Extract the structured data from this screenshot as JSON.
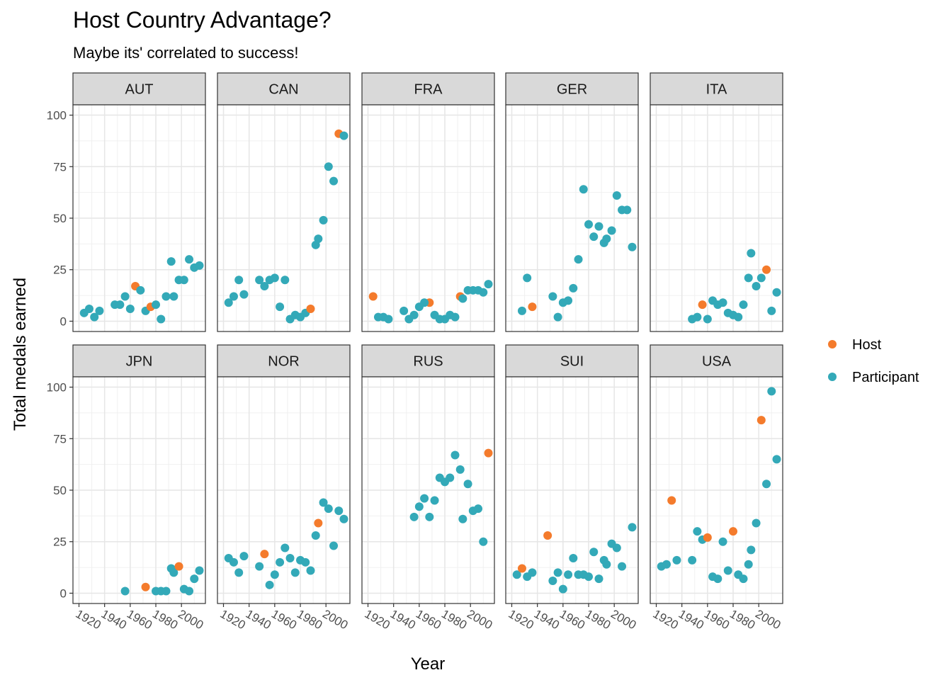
{
  "chart_data": {
    "type": "scatter",
    "title": "Host Country Advantage?",
    "subtitle": "Maybe its' correlated to success!",
    "xlabel": "Year",
    "ylabel": "Total medals earned",
    "xlim": [
      1920,
      2014
    ],
    "ylim": [
      0,
      100
    ],
    "x_ticks": [
      1920,
      1940,
      1960,
      1980,
      2000
    ],
    "y_ticks": [
      0,
      25,
      50,
      75,
      100
    ],
    "grid": true,
    "facet_layout": "2 rows x 5 columns",
    "legend_position": "right",
    "legend": [
      {
        "name": "Host",
        "color": "#F47B2C"
      },
      {
        "name": "Participant",
        "color": "#33A9B8"
      }
    ],
    "colors": {
      "Host": "#F47B2C",
      "Participant": "#33A9B8"
    },
    "panels": [
      {
        "name": "AUT",
        "points": [
          [
            1924,
            4,
            "Participant"
          ],
          [
            1928,
            6,
            "Participant"
          ],
          [
            1932,
            2,
            "Participant"
          ],
          [
            1936,
            5,
            "Participant"
          ],
          [
            1948,
            8,
            "Participant"
          ],
          [
            1952,
            8,
            "Participant"
          ],
          [
            1956,
            12,
            "Participant"
          ],
          [
            1960,
            6,
            "Participant"
          ],
          [
            1964,
            17,
            "Host"
          ],
          [
            1968,
            15,
            "Participant"
          ],
          [
            1972,
            5,
            "Participant"
          ],
          [
            1976,
            7,
            "Host"
          ],
          [
            1980,
            8,
            "Participant"
          ],
          [
            1984,
            1,
            "Participant"
          ],
          [
            1988,
            12,
            "Participant"
          ],
          [
            1992,
            29,
            "Participant"
          ],
          [
            1994,
            12,
            "Participant"
          ],
          [
            1998,
            20,
            "Participant"
          ],
          [
            2002,
            20,
            "Participant"
          ],
          [
            2006,
            30,
            "Participant"
          ],
          [
            2010,
            26,
            "Participant"
          ],
          [
            2014,
            27,
            "Participant"
          ]
        ]
      },
      {
        "name": "CAN",
        "points": [
          [
            1924,
            9,
            "Participant"
          ],
          [
            1928,
            12,
            "Participant"
          ],
          [
            1932,
            20,
            "Participant"
          ],
          [
            1936,
            13,
            "Participant"
          ],
          [
            1948,
            20,
            "Participant"
          ],
          [
            1952,
            17,
            "Participant"
          ],
          [
            1956,
            20,
            "Participant"
          ],
          [
            1960,
            21,
            "Participant"
          ],
          [
            1964,
            7,
            "Participant"
          ],
          [
            1968,
            20,
            "Participant"
          ],
          [
            1972,
            1,
            "Participant"
          ],
          [
            1976,
            3,
            "Participant"
          ],
          [
            1980,
            2,
            "Participant"
          ],
          [
            1984,
            4,
            "Participant"
          ],
          [
            1988,
            6,
            "Host"
          ],
          [
            1992,
            37,
            "Participant"
          ],
          [
            1994,
            40,
            "Participant"
          ],
          [
            1998,
            49,
            "Participant"
          ],
          [
            2002,
            75,
            "Participant"
          ],
          [
            2006,
            68,
            "Participant"
          ],
          [
            2010,
            91,
            "Host"
          ],
          [
            2014,
            90,
            "Participant"
          ]
        ]
      },
      {
        "name": "FRA",
        "points": [
          [
            1924,
            12,
            "Host"
          ],
          [
            1928,
            2,
            "Participant"
          ],
          [
            1932,
            2,
            "Participant"
          ],
          [
            1936,
            1,
            "Participant"
          ],
          [
            1948,
            5,
            "Participant"
          ],
          [
            1952,
            1,
            "Participant"
          ],
          [
            1956,
            3,
            "Participant"
          ],
          [
            1960,
            7,
            "Participant"
          ],
          [
            1968,
            9,
            "Host"
          ],
          [
            1972,
            3,
            "Participant"
          ],
          [
            1976,
            1,
            "Participant"
          ],
          [
            1980,
            1,
            "Participant"
          ],
          [
            1984,
            3,
            "Participant"
          ],
          [
            1988,
            2,
            "Participant"
          ],
          [
            1964,
            9,
            "Participant"
          ],
          [
            1992,
            12,
            "Host"
          ],
          [
            1994,
            11,
            "Participant"
          ],
          [
            1998,
            15,
            "Participant"
          ],
          [
            2002,
            15,
            "Participant"
          ],
          [
            2006,
            15,
            "Participant"
          ],
          [
            2010,
            14,
            "Participant"
          ],
          [
            2014,
            18,
            "Participant"
          ]
        ]
      },
      {
        "name": "GER",
        "points": [
          [
            1928,
            5,
            "Participant"
          ],
          [
            1932,
            21,
            "Participant"
          ],
          [
            1936,
            7,
            "Host"
          ],
          [
            1952,
            12,
            "Participant"
          ],
          [
            1956,
            2,
            "Participant"
          ],
          [
            1960,
            9,
            "Participant"
          ],
          [
            1964,
            10,
            "Participant"
          ],
          [
            1968,
            16,
            "Participant"
          ],
          [
            1972,
            30,
            "Participant"
          ],
          [
            1976,
            64,
            "Participant"
          ],
          [
            1980,
            47,
            "Participant"
          ],
          [
            1984,
            41,
            "Participant"
          ],
          [
            1988,
            46,
            "Participant"
          ],
          [
            1992,
            38,
            "Participant"
          ],
          [
            1994,
            40,
            "Participant"
          ],
          [
            1998,
            44,
            "Participant"
          ],
          [
            2002,
            61,
            "Participant"
          ],
          [
            2006,
            54,
            "Participant"
          ],
          [
            2010,
            54,
            "Participant"
          ],
          [
            2014,
            36,
            "Participant"
          ]
        ]
      },
      {
        "name": "ITA",
        "points": [
          [
            1948,
            1,
            "Participant"
          ],
          [
            1952,
            2,
            "Participant"
          ],
          [
            1956,
            8,
            "Host"
          ],
          [
            1960,
            1,
            "Participant"
          ],
          [
            1964,
            10,
            "Participant"
          ],
          [
            1968,
            8,
            "Participant"
          ],
          [
            1972,
            9,
            "Participant"
          ],
          [
            1976,
            4,
            "Participant"
          ],
          [
            1980,
            3,
            "Participant"
          ],
          [
            1984,
            2,
            "Participant"
          ],
          [
            1988,
            8,
            "Participant"
          ],
          [
            1992,
            21,
            "Participant"
          ],
          [
            1994,
            33,
            "Participant"
          ],
          [
            1998,
            17,
            "Participant"
          ],
          [
            2002,
            21,
            "Participant"
          ],
          [
            2006,
            25,
            "Host"
          ],
          [
            2010,
            5,
            "Participant"
          ],
          [
            2014,
            14,
            "Participant"
          ]
        ]
      },
      {
        "name": "JPN",
        "points": [
          [
            1956,
            1,
            "Participant"
          ],
          [
            1972,
            3,
            "Host"
          ],
          [
            1980,
            1,
            "Participant"
          ],
          [
            1984,
            1,
            "Participant"
          ],
          [
            1988,
            1,
            "Participant"
          ],
          [
            1992,
            12,
            "Participant"
          ],
          [
            1994,
            10,
            "Participant"
          ],
          [
            1998,
            13,
            "Host"
          ],
          [
            2002,
            2,
            "Participant"
          ],
          [
            2006,
            1,
            "Participant"
          ],
          [
            2010,
            7,
            "Participant"
          ],
          [
            2014,
            11,
            "Participant"
          ]
        ]
      },
      {
        "name": "NOR",
        "points": [
          [
            1924,
            17,
            "Participant"
          ],
          [
            1928,
            15,
            "Participant"
          ],
          [
            1932,
            10,
            "Participant"
          ],
          [
            1936,
            18,
            "Participant"
          ],
          [
            1948,
            13,
            "Participant"
          ],
          [
            1952,
            19,
            "Host"
          ],
          [
            1956,
            4,
            "Participant"
          ],
          [
            1960,
            9,
            "Participant"
          ],
          [
            1964,
            15,
            "Participant"
          ],
          [
            1968,
            22,
            "Participant"
          ],
          [
            1972,
            17,
            "Participant"
          ],
          [
            1976,
            10,
            "Participant"
          ],
          [
            1980,
            16,
            "Participant"
          ],
          [
            1984,
            15,
            "Participant"
          ],
          [
            1988,
            11,
            "Participant"
          ],
          [
            1992,
            28,
            "Participant"
          ],
          [
            1994,
            34,
            "Host"
          ],
          [
            1998,
            44,
            "Participant"
          ],
          [
            2002,
            41,
            "Participant"
          ],
          [
            2006,
            23,
            "Participant"
          ],
          [
            2010,
            40,
            "Participant"
          ],
          [
            2014,
            36,
            "Participant"
          ]
        ]
      },
      {
        "name": "RUS",
        "points": [
          [
            1956,
            37,
            "Participant"
          ],
          [
            1960,
            42,
            "Participant"
          ],
          [
            1964,
            46,
            "Participant"
          ],
          [
            1968,
            37,
            "Participant"
          ],
          [
            1972,
            45,
            "Participant"
          ],
          [
            1976,
            56,
            "Participant"
          ],
          [
            1980,
            54,
            "Participant"
          ],
          [
            1984,
            56,
            "Participant"
          ],
          [
            1988,
            67,
            "Participant"
          ],
          [
            1992,
            60,
            "Participant"
          ],
          [
            1994,
            36,
            "Participant"
          ],
          [
            1998,
            53,
            "Participant"
          ],
          [
            2002,
            40,
            "Participant"
          ],
          [
            2006,
            41,
            "Participant"
          ],
          [
            2010,
            25,
            "Participant"
          ],
          [
            2014,
            68,
            "Host"
          ]
        ]
      },
      {
        "name": "SUI",
        "points": [
          [
            1924,
            9,
            "Participant"
          ],
          [
            1928,
            12,
            "Host"
          ],
          [
            1932,
            8,
            "Participant"
          ],
          [
            1936,
            10,
            "Participant"
          ],
          [
            1948,
            28,
            "Host"
          ],
          [
            1952,
            6,
            "Participant"
          ],
          [
            1956,
            10,
            "Participant"
          ],
          [
            1960,
            2,
            "Participant"
          ],
          [
            1964,
            9,
            "Participant"
          ],
          [
            1968,
            17,
            "Participant"
          ],
          [
            1972,
            9,
            "Participant"
          ],
          [
            1976,
            9,
            "Participant"
          ],
          [
            1980,
            8,
            "Participant"
          ],
          [
            1984,
            20,
            "Participant"
          ],
          [
            1988,
            7,
            "Participant"
          ],
          [
            1992,
            16,
            "Participant"
          ],
          [
            1994,
            14,
            "Participant"
          ],
          [
            1998,
            24,
            "Participant"
          ],
          [
            2002,
            22,
            "Participant"
          ],
          [
            2006,
            13,
            "Participant"
          ],
          [
            2014,
            32,
            "Participant"
          ]
        ]
      },
      {
        "name": "USA",
        "points": [
          [
            1924,
            13,
            "Participant"
          ],
          [
            1928,
            14,
            "Participant"
          ],
          [
            1932,
            45,
            "Host"
          ],
          [
            1936,
            16,
            "Participant"
          ],
          [
            1948,
            16,
            "Participant"
          ],
          [
            1952,
            30,
            "Participant"
          ],
          [
            1956,
            26,
            "Participant"
          ],
          [
            1960,
            27,
            "Host"
          ],
          [
            1964,
            8,
            "Participant"
          ],
          [
            1968,
            7,
            "Participant"
          ],
          [
            1972,
            25,
            "Participant"
          ],
          [
            1976,
            11,
            "Participant"
          ],
          [
            1980,
            30,
            "Host"
          ],
          [
            1984,
            9,
            "Participant"
          ],
          [
            1988,
            7,
            "Participant"
          ],
          [
            1992,
            14,
            "Participant"
          ],
          [
            1994,
            21,
            "Participant"
          ],
          [
            1998,
            34,
            "Participant"
          ],
          [
            2002,
            84,
            "Host"
          ],
          [
            2006,
            53,
            "Participant"
          ],
          [
            2010,
            98,
            "Participant"
          ],
          [
            2014,
            65,
            "Participant"
          ]
        ]
      }
    ]
  }
}
